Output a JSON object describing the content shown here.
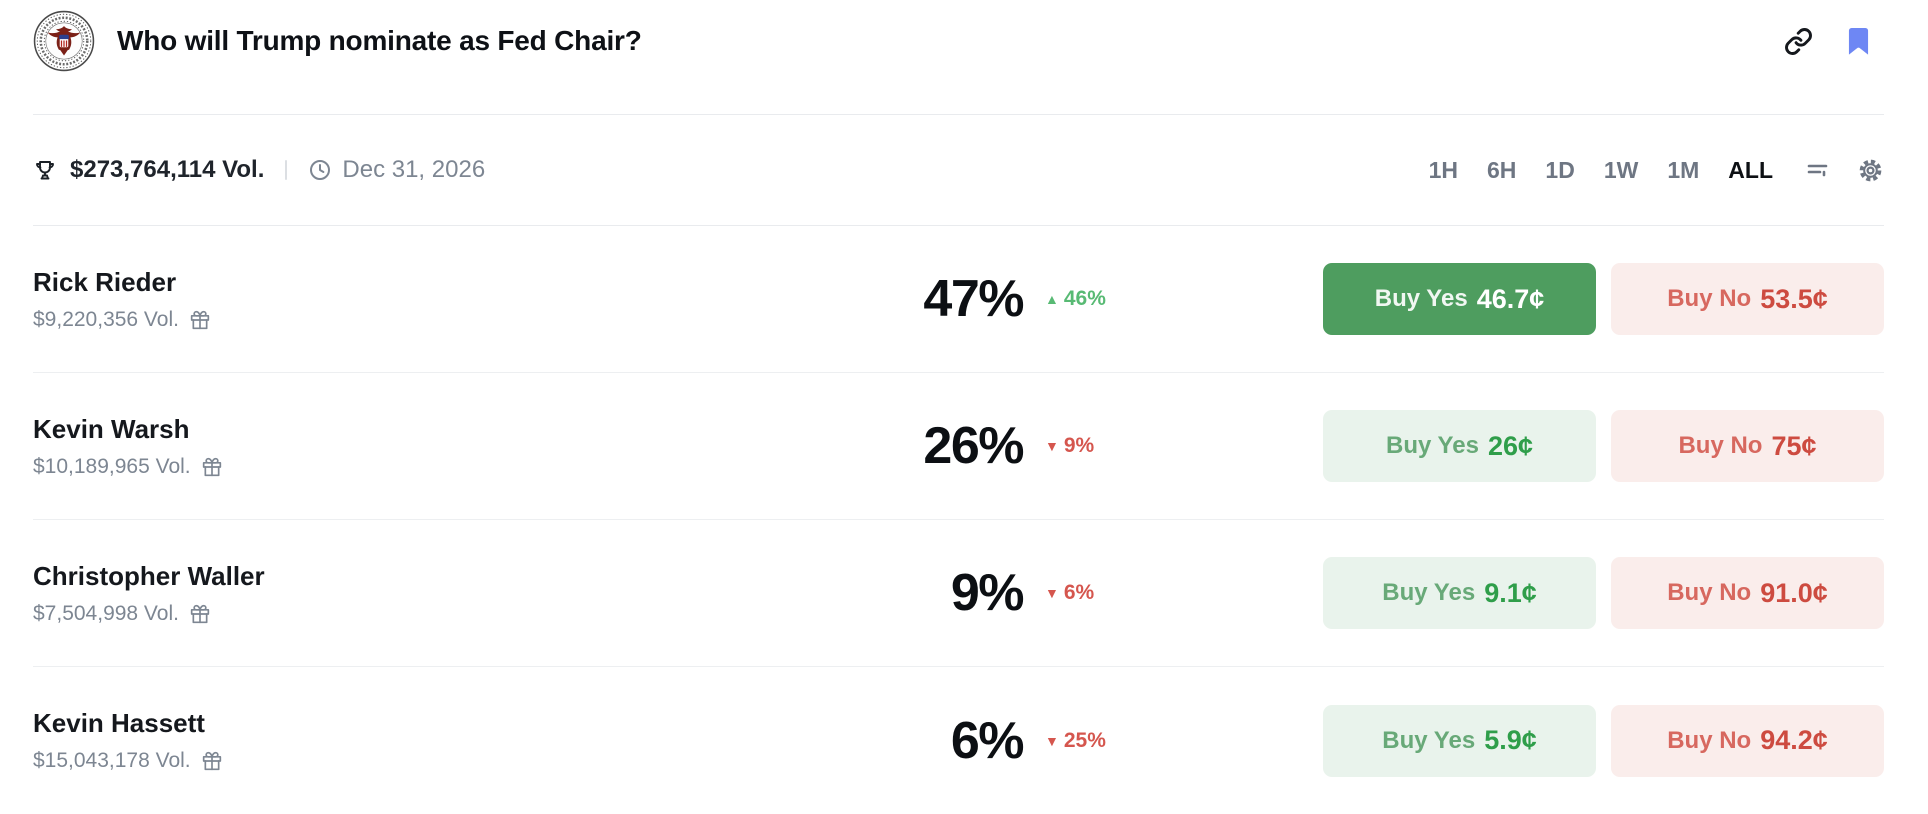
{
  "header": {
    "title": "Who will Trump nominate as Fed Chair?"
  },
  "stats": {
    "volume": "$273,764,114 Vol.",
    "end_date": "Dec 31, 2026"
  },
  "timeframes": {
    "options": [
      "1H",
      "6H",
      "1D",
      "1W",
      "1M",
      "ALL"
    ],
    "selected": "ALL"
  },
  "labels": {
    "buy_yes": "Buy Yes",
    "buy_no": "Buy No"
  },
  "icons": {
    "up_arrow": "▲",
    "down_arrow": "▼"
  },
  "outcomes": [
    {
      "name": "Rick Rieder",
      "volume": "$9,220,356 Vol.",
      "chance": "47%",
      "change": "46%",
      "change_dir": "up",
      "yes_price": "46.7¢",
      "no_price": "53.5¢",
      "yes_style": "solid"
    },
    {
      "name": "Kevin Warsh",
      "volume": "$10,189,965 Vol.",
      "chance": "26%",
      "change": "9%",
      "change_dir": "down",
      "yes_price": "26¢",
      "no_price": "75¢",
      "yes_style": "light"
    },
    {
      "name": "Christopher Waller",
      "volume": "$7,504,998 Vol.",
      "chance": "9%",
      "change": "6%",
      "change_dir": "down",
      "yes_price": "9.1¢",
      "no_price": "91.0¢",
      "yes_style": "light"
    },
    {
      "name": "Kevin Hassett",
      "volume": "$15,043,178 Vol.",
      "chance": "6%",
      "change": "25%",
      "change_dir": "down",
      "yes_price": "5.9¢",
      "no_price": "94.2¢",
      "yes_style": "light"
    }
  ],
  "colors": {
    "green-solid": "#4e9d5f",
    "yes-bg": "#e9f3ec",
    "yes-label": "#68a978",
    "yes-price": "#2f9e4a",
    "no-bg": "#faedeb",
    "no-label": "#d7685f",
    "no-price": "#cd4b40",
    "up": "#58ba74",
    "down": "#d5564e",
    "bookmark": "#6e87f4"
  }
}
